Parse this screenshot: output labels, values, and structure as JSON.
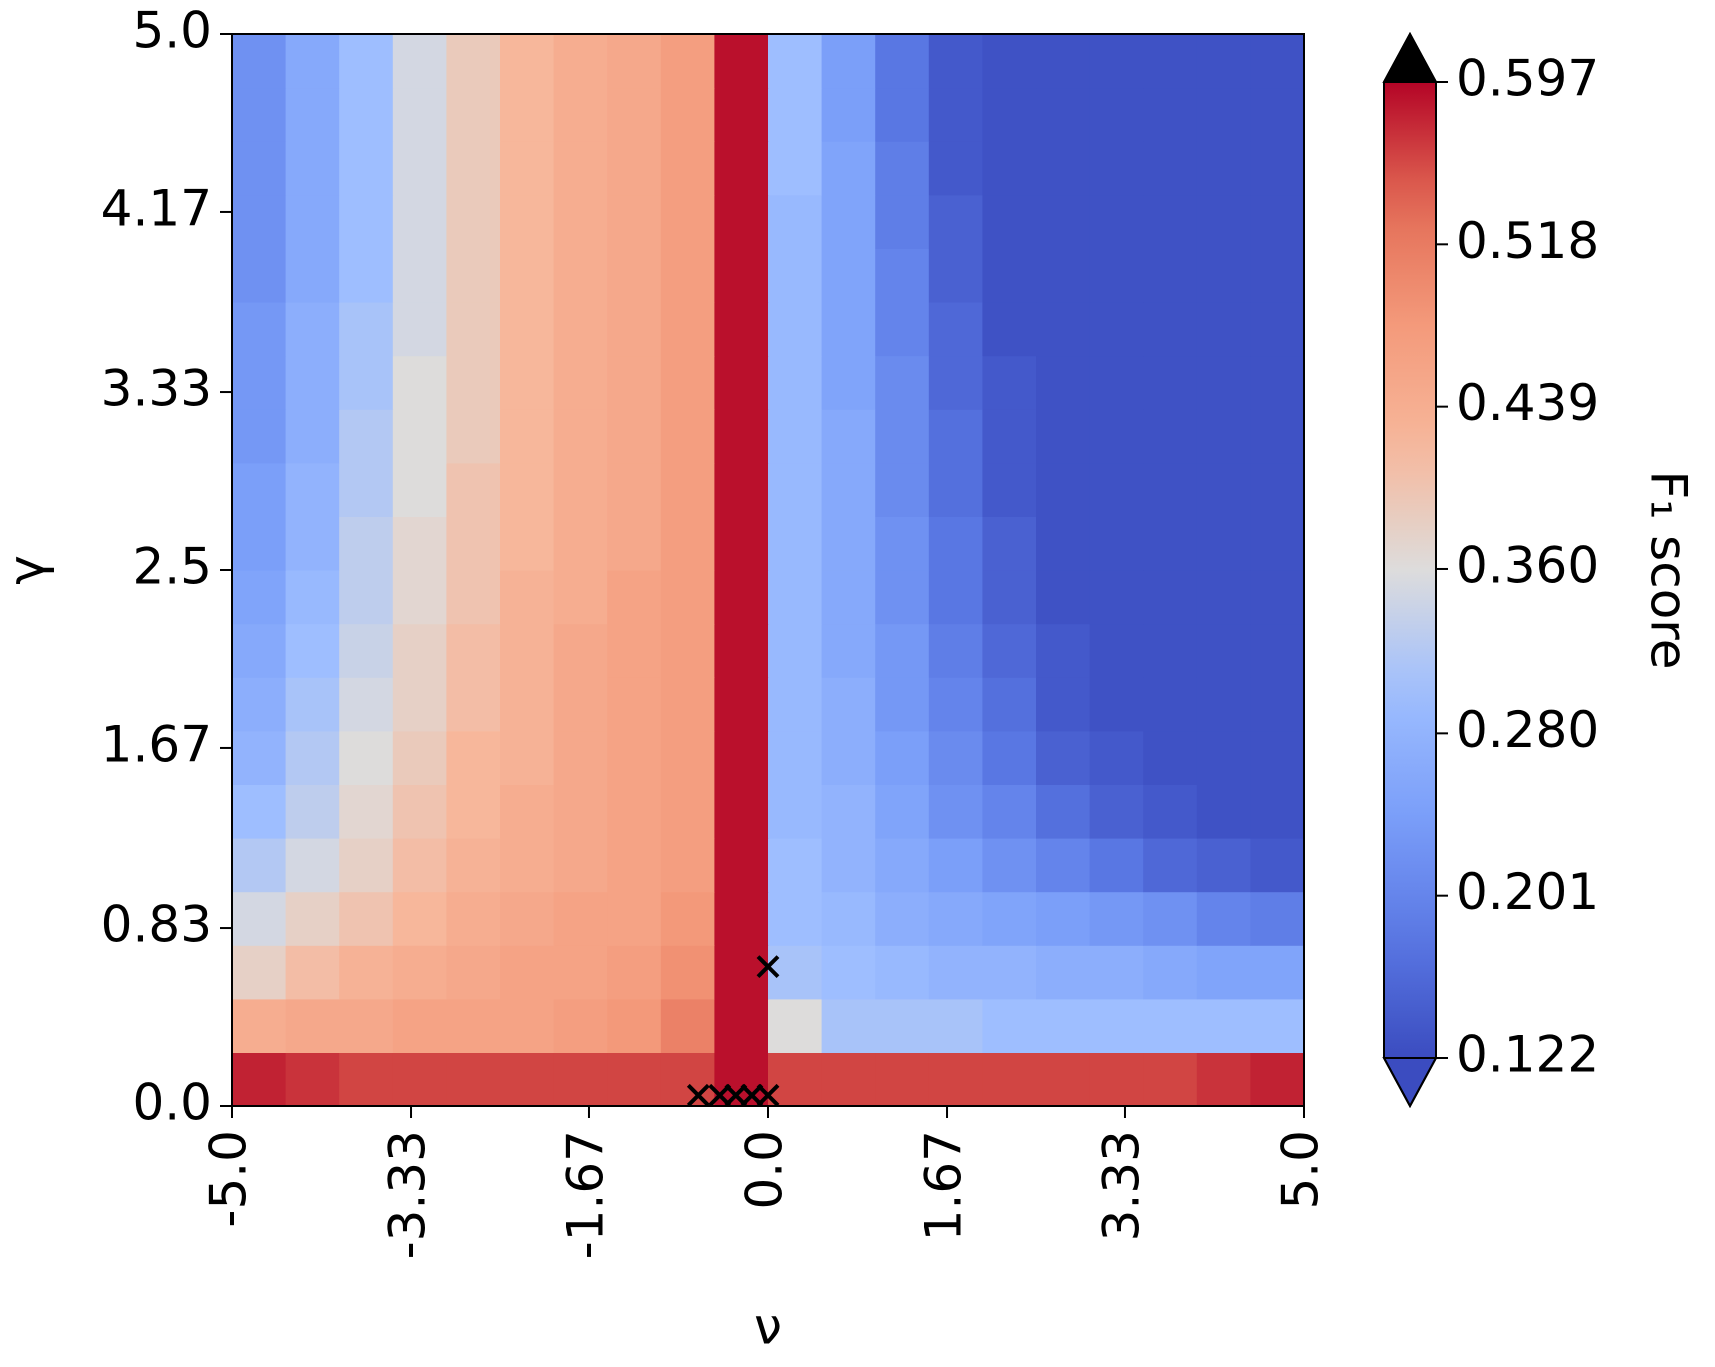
{
  "chart_data": {
    "type": "heatmap",
    "xlabel": "ν",
    "ylabel": "γ",
    "colorbar_label": "F₁ score",
    "xlim": [
      -5,
      5
    ],
    "ylim": [
      0,
      5
    ],
    "xticks": [
      {
        "value": -5,
        "label": "-5.0"
      },
      -3.33,
      -1.67,
      {
        "value": 0,
        "label": "0.0"
      },
      1.67,
      3.33,
      {
        "value": 5,
        "label": "5.0"
      }
    ],
    "yticks": [
      {
        "value": 0,
        "label": "0.0"
      },
      0.83,
      1.67,
      2.5,
      3.33,
      4.17,
      {
        "value": 5,
        "label": "5.0"
      }
    ],
    "colormap": "coolwarm",
    "clim": [
      0.122,
      0.597
    ],
    "extend": "both",
    "over_color": "#000000",
    "cticks": [
      0.122,
      0.201,
      {
        "value": 0.28,
        "label": "0.280"
      },
      {
        "value": 0.36,
        "label": "0.360"
      },
      0.439,
      0.518,
      0.597
    ],
    "z": [
      [
        0.58,
        0.57,
        0.56,
        0.56,
        0.56,
        0.56,
        0.56,
        0.56,
        0.56,
        0.59,
        0.56,
        0.56,
        0.56,
        0.56,
        0.56,
        0.56,
        0.56,
        0.56,
        0.57,
        0.58
      ],
      [
        0.44,
        0.45,
        0.45,
        0.46,
        0.46,
        0.46,
        0.47,
        0.48,
        0.51,
        0.59,
        0.36,
        0.31,
        0.31,
        0.31,
        0.3,
        0.3,
        0.3,
        0.3,
        0.3,
        0.3
      ],
      [
        0.38,
        0.41,
        0.43,
        0.44,
        0.45,
        0.46,
        0.46,
        0.47,
        0.49,
        0.59,
        0.31,
        0.3,
        0.29,
        0.28,
        0.28,
        0.27,
        0.27,
        0.26,
        0.25,
        0.25
      ],
      [
        0.35,
        0.38,
        0.4,
        0.42,
        0.44,
        0.45,
        0.46,
        0.46,
        0.48,
        0.59,
        0.3,
        0.29,
        0.27,
        0.26,
        0.25,
        0.24,
        0.23,
        0.22,
        0.2,
        0.19
      ],
      [
        0.32,
        0.35,
        0.38,
        0.41,
        0.43,
        0.44,
        0.45,
        0.46,
        0.47,
        0.59,
        0.3,
        0.28,
        0.26,
        0.24,
        0.22,
        0.2,
        0.18,
        0.16,
        0.15,
        0.14
      ],
      [
        0.3,
        0.33,
        0.37,
        0.4,
        0.42,
        0.44,
        0.45,
        0.46,
        0.47,
        0.59,
        0.29,
        0.28,
        0.25,
        0.22,
        0.2,
        0.17,
        0.15,
        0.14,
        0.13,
        0.13
      ],
      [
        0.28,
        0.32,
        0.36,
        0.39,
        0.42,
        0.43,
        0.45,
        0.46,
        0.47,
        0.59,
        0.29,
        0.27,
        0.24,
        0.21,
        0.18,
        0.15,
        0.14,
        0.13,
        0.13,
        0.13
      ],
      [
        0.27,
        0.31,
        0.35,
        0.38,
        0.41,
        0.43,
        0.45,
        0.46,
        0.47,
        0.59,
        0.29,
        0.27,
        0.23,
        0.2,
        0.17,
        0.14,
        0.13,
        0.13,
        0.13,
        0.13
      ],
      [
        0.26,
        0.3,
        0.34,
        0.38,
        0.41,
        0.43,
        0.45,
        0.46,
        0.47,
        0.59,
        0.29,
        0.26,
        0.23,
        0.19,
        0.16,
        0.14,
        0.13,
        0.13,
        0.13,
        0.13
      ],
      [
        0.25,
        0.29,
        0.33,
        0.37,
        0.4,
        0.43,
        0.44,
        0.46,
        0.47,
        0.59,
        0.29,
        0.26,
        0.22,
        0.18,
        0.15,
        0.13,
        0.13,
        0.13,
        0.13,
        0.13
      ],
      [
        0.24,
        0.28,
        0.33,
        0.37,
        0.4,
        0.42,
        0.44,
        0.45,
        0.47,
        0.59,
        0.29,
        0.26,
        0.22,
        0.18,
        0.15,
        0.13,
        0.13,
        0.13,
        0.13,
        0.13
      ],
      [
        0.24,
        0.28,
        0.32,
        0.36,
        0.4,
        0.42,
        0.44,
        0.45,
        0.47,
        0.59,
        0.29,
        0.26,
        0.21,
        0.17,
        0.14,
        0.13,
        0.13,
        0.13,
        0.13,
        0.13
      ],
      [
        0.23,
        0.27,
        0.32,
        0.36,
        0.39,
        0.42,
        0.44,
        0.45,
        0.47,
        0.59,
        0.29,
        0.26,
        0.21,
        0.17,
        0.14,
        0.13,
        0.13,
        0.13,
        0.13,
        0.13
      ],
      [
        0.23,
        0.27,
        0.31,
        0.36,
        0.39,
        0.42,
        0.44,
        0.45,
        0.47,
        0.59,
        0.29,
        0.25,
        0.21,
        0.16,
        0.14,
        0.13,
        0.13,
        0.13,
        0.13,
        0.13
      ],
      [
        0.23,
        0.27,
        0.31,
        0.35,
        0.39,
        0.42,
        0.44,
        0.45,
        0.47,
        0.59,
        0.29,
        0.25,
        0.2,
        0.16,
        0.13,
        0.13,
        0.13,
        0.13,
        0.13,
        0.13
      ],
      [
        0.22,
        0.26,
        0.3,
        0.35,
        0.39,
        0.42,
        0.44,
        0.45,
        0.47,
        0.59,
        0.29,
        0.25,
        0.2,
        0.15,
        0.13,
        0.13,
        0.13,
        0.13,
        0.13,
        0.13
      ],
      [
        0.22,
        0.26,
        0.3,
        0.35,
        0.39,
        0.42,
        0.44,
        0.45,
        0.47,
        0.59,
        0.29,
        0.25,
        0.19,
        0.15,
        0.13,
        0.13,
        0.13,
        0.13,
        0.13,
        0.13
      ],
      [
        0.22,
        0.26,
        0.3,
        0.35,
        0.39,
        0.42,
        0.44,
        0.45,
        0.47,
        0.59,
        0.3,
        0.25,
        0.19,
        0.14,
        0.13,
        0.13,
        0.13,
        0.13,
        0.13,
        0.13
      ],
      [
        0.22,
        0.26,
        0.3,
        0.35,
        0.39,
        0.42,
        0.44,
        0.45,
        0.47,
        0.59,
        0.3,
        0.24,
        0.18,
        0.14,
        0.13,
        0.13,
        0.13,
        0.13,
        0.13,
        0.13
      ],
      [
        0.22,
        0.26,
        0.3,
        0.35,
        0.39,
        0.42,
        0.44,
        0.45,
        0.47,
        0.59,
        0.3,
        0.24,
        0.18,
        0.14,
        0.13,
        0.13,
        0.13,
        0.13,
        0.13,
        0.13
      ]
    ],
    "markers": {
      "x": [
        0,
        -0.65,
        -0.45,
        -0.3,
        -0.15,
        0
      ],
      "y": [
        0.65,
        0.05,
        0.05,
        0.05,
        0.05,
        0.05
      ]
    }
  }
}
